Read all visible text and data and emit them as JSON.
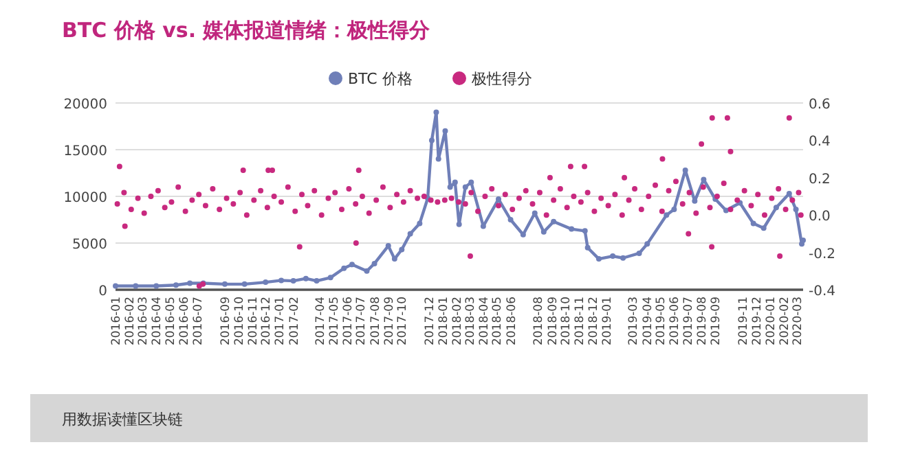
{
  "chart_data": {
    "type": "line",
    "title": "BTC 价格 vs. 媒体报道情绪：极性得分",
    "legend": "top",
    "grid": "y",
    "marker": "circle",
    "annotations": [
      "用数据读懂区块链"
    ],
    "xlim": [
      "2016-01-01",
      "2020-03-15"
    ],
    "xticks": [
      "2016-01",
      "2016-02",
      "2016-03",
      "2016-04",
      "2016-05",
      "2016-06",
      "2016-07",
      "2016-09",
      "2016-10",
      "2016-11",
      "2016-12",
      "2017-01",
      "2017-02",
      "2017-04",
      "2017-05",
      "2017-06",
      "2017-07",
      "2017-08",
      "2017-09",
      "2017-10",
      "2017-12",
      "2018-01",
      "2018-02",
      "2018-03",
      "2018-04",
      "2018-05",
      "2018-06",
      "2018-08",
      "2018-09",
      "2018-10",
      "2018-11",
      "2018-12",
      "2019-01",
      "2019-03",
      "2019-04",
      "2019-05",
      "2019-06",
      "2019-07",
      "2019-08",
      "2019-09",
      "2019-11",
      "2019-12",
      "2020-01",
      "2020-02",
      "2020-03"
    ],
    "ylim": [
      0,
      20000
    ],
    "yticks": [
      0,
      5000,
      10000,
      15000,
      20000
    ],
    "y2lim": [
      -0.4,
      0.6
    ],
    "y2ticks": [
      -0.4,
      -0.2,
      {
        "value": 0,
        "label": "0.0"
      },
      0.2,
      0.4,
      0.6
    ],
    "series": [
      {
        "name": "BTC 价格",
        "color": "#6f7fb8",
        "x": [
          "2016-01-01",
          "2016-02-15",
          "2016-04-01",
          "2016-05-15",
          "2016-06-15",
          "2016-07-15",
          "2016-09-01",
          "2016-10-15",
          "2016-12-01",
          "2017-01-05",
          "2017-02-01",
          "2017-03-01",
          "2017-03-25",
          "2017-04-25",
          "2017-05-25",
          "2017-06-12",
          "2017-07-15",
          "2017-08-01",
          "2017-09-01",
          "2017-09-15",
          "2017-10-01",
          "2017-10-20",
          "2017-11-10",
          "2017-11-28",
          "2017-12-07",
          "2017-12-17",
          "2017-12-22",
          "2018-01-06",
          "2018-01-17",
          "2018-01-28",
          "2018-02-06",
          "2018-02-20",
          "2018-03-05",
          "2018-04-01",
          "2018-05-05",
          "2018-06-01",
          "2018-06-29",
          "2018-07-25",
          "2018-08-14",
          "2018-09-05",
          "2018-10-15",
          "2018-11-14",
          "2018-11-20",
          "2018-12-15",
          "2019-01-15",
          "2019-02-07",
          "2019-03-15",
          "2019-04-02",
          "2019-05-15",
          "2019-06-01",
          "2019-06-26",
          "2019-07-17",
          "2019-08-06",
          "2019-09-01",
          "2019-09-25",
          "2019-10-26",
          "2019-11-25",
          "2019-12-18",
          "2020-01-15",
          "2020-02-13",
          "2020-02-28",
          "2020-03-12",
          "2020-03-15"
        ],
        "values": [
          400,
          400,
          400,
          500,
          700,
          700,
          600,
          600,
          800,
          1000,
          950,
          1200,
          950,
          1300,
          2300,
          2700,
          2000,
          2800,
          4700,
          3300,
          4300,
          6000,
          7100,
          9800,
          16000,
          19000,
          14000,
          17000,
          11000,
          11500,
          7000,
          11000,
          11500,
          6800,
          9700,
          7500,
          5900,
          8200,
          6200,
          7300,
          6500,
          6300,
          4500,
          3300,
          3600,
          3400,
          3900,
          4900,
          8000,
          8600,
          12800,
          9500,
          11800,
          9700,
          8500,
          9300,
          7100,
          6600,
          8800,
          10300,
          8600,
          4900,
          5300
        ]
      },
      {
        "name": "极性得分",
        "type": "scatter",
        "axis": "y2",
        "color": "#c8297f",
        "x": [
          "2016-01-05",
          "2016-01-20",
          "2016-02-05",
          "2016-02-20",
          "2016-03-05",
          "2016-03-20",
          "2016-04-05",
          "2016-04-20",
          "2016-05-05",
          "2016-05-20",
          "2016-06-05",
          "2016-06-20",
          "2016-07-05",
          "2016-07-20",
          "2016-08-05",
          "2016-08-20",
          "2016-09-05",
          "2016-09-20",
          "2016-10-05",
          "2016-10-20",
          "2016-11-05",
          "2016-11-20",
          "2016-12-05",
          "2016-12-20",
          "2017-01-05",
          "2017-01-20",
          "2017-02-05",
          "2017-02-20",
          "2017-03-05",
          "2017-03-20",
          "2017-04-05",
          "2017-04-20",
          "2017-05-05",
          "2017-05-20",
          "2017-06-05",
          "2017-06-20",
          "2017-07-05",
          "2017-07-20",
          "2017-08-05",
          "2017-08-20",
          "2017-09-05",
          "2017-09-20",
          "2017-10-05",
          "2017-10-20",
          "2017-11-05",
          "2017-11-20",
          "2017-12-05",
          "2017-12-20",
          "2018-01-05",
          "2018-01-20",
          "2018-02-05",
          "2018-02-20",
          "2018-03-05",
          "2018-03-20",
          "2018-04-05",
          "2018-04-20",
          "2018-05-05",
          "2018-05-20",
          "2018-06-05",
          "2018-06-20",
          "2018-07-05",
          "2018-07-20",
          "2018-08-05",
          "2018-08-20",
          "2018-09-05",
          "2018-09-20",
          "2018-10-05",
          "2018-10-20",
          "2018-11-05",
          "2018-11-20",
          "2018-12-05",
          "2018-12-20",
          "2019-01-05",
          "2019-01-20",
          "2019-02-05",
          "2019-02-20",
          "2019-03-05",
          "2019-03-20",
          "2019-04-05",
          "2019-04-20",
          "2019-05-05",
          "2019-05-20",
          "2019-06-05",
          "2019-06-20",
          "2019-07-05",
          "2019-07-20",
          "2019-08-05",
          "2019-08-20",
          "2019-09-05",
          "2019-09-20",
          "2019-10-05",
          "2019-10-20",
          "2019-11-05",
          "2019-11-20",
          "2019-12-05",
          "2019-12-20",
          "2020-01-05",
          "2020-01-20",
          "2020-02-05",
          "2020-02-20",
          "2020-03-05",
          "2020-03-10",
          "2016-01-10",
          "2016-01-22",
          "2016-07-06",
          "2016-07-14",
          "2016-10-12",
          "2016-12-07",
          "2016-12-16",
          "2017-02-15",
          "2017-06-21",
          "2017-06-27",
          "2018-03-03",
          "2018-08-28",
          "2018-10-13",
          "2018-11-13",
          "2019-02-10",
          "2019-05-06",
          "2019-07-03",
          "2019-08-01",
          "2019-08-24",
          "2019-08-25",
          "2019-09-28",
          "2019-10-05",
          "2020-01-23",
          "2020-02-13"
        ],
        "values": [
          0.06,
          0.12,
          0.03,
          0.09,
          0.01,
          0.1,
          0.13,
          0.04,
          0.07,
          0.15,
          0.02,
          0.08,
          0.11,
          0.05,
          0.14,
          0.03,
          0.09,
          0.06,
          0.12,
          0.0,
          0.08,
          0.13,
          0.04,
          0.1,
          0.07,
          0.15,
          0.02,
          0.11,
          0.05,
          0.13,
          0.0,
          0.09,
          0.12,
          0.03,
          0.14,
          0.06,
          0.1,
          0.01,
          0.08,
          0.15,
          0.04,
          0.11,
          0.07,
          0.13,
          0.09,
          0.1,
          0.08,
          0.07,
          0.08,
          0.09,
          0.07,
          0.06,
          0.12,
          0.02,
          0.1,
          0.14,
          0.05,
          0.11,
          0.03,
          0.09,
          0.13,
          0.06,
          0.12,
          0.0,
          0.08,
          0.14,
          0.04,
          0.1,
          0.07,
          0.12,
          0.02,
          0.09,
          0.05,
          0.11,
          0.0,
          0.08,
          0.14,
          0.03,
          0.1,
          0.16,
          0.02,
          0.13,
          0.18,
          0.06,
          0.12,
          0.01,
          0.15,
          0.04,
          0.1,
          0.17,
          0.03,
          0.08,
          0.13,
          0.05,
          0.11,
          0.0,
          0.09,
          0.14,
          0.03,
          0.08,
          0.12,
          0.0,
          0.26,
          -0.06,
          -0.38,
          -0.37,
          0.24,
          0.24,
          0.24,
          -0.17,
          -0.15,
          0.24,
          -0.22,
          0.2,
          0.26,
          0.26,
          0.2,
          0.3,
          -0.1,
          0.38,
          -0.17,
          0.52,
          0.52,
          0.34,
          -0.22,
          0.52
        ]
      }
    ]
  }
}
